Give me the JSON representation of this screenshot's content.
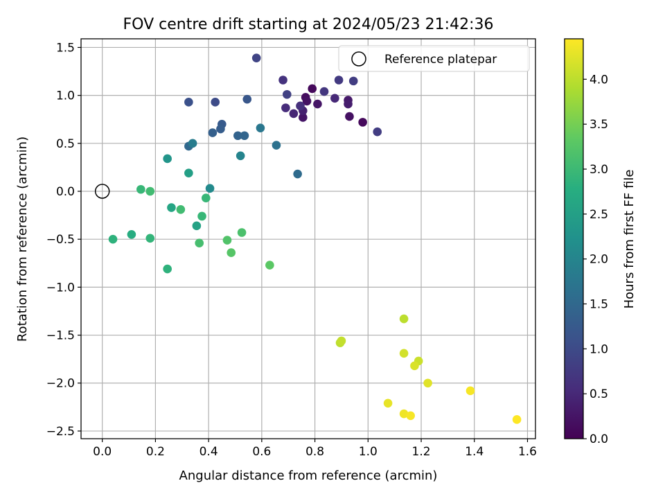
{
  "chart_data": {
    "type": "scatter",
    "title": "FOV centre drift starting at 2024/05/23 21:42:36",
    "xlabel": "Angular distance from reference (arcmin)",
    "ylabel": "Rotation from reference (arcmin)",
    "xlim": [
      -0.08,
      1.63
    ],
    "ylim": [
      -2.58,
      1.59
    ],
    "xticks": [
      0.0,
      0.2,
      0.4,
      0.6,
      0.8,
      1.0,
      1.2,
      1.4,
      1.6
    ],
    "xtick_labels": [
      "0.0",
      "0.2",
      "0.4",
      "0.6",
      "0.8",
      "1.0",
      "1.2",
      "1.4",
      "1.6"
    ],
    "yticks": [
      1.5,
      1.0,
      0.5,
      0.0,
      -0.5,
      -1.0,
      -1.5,
      -2.0,
      -2.5
    ],
    "ytick_labels": [
      "1.5",
      "1.0",
      "0.5",
      "0.0",
      "−0.5",
      "−1.0",
      "−1.5",
      "−2.0",
      "−2.5"
    ],
    "grid": true,
    "legend": {
      "position": "top-right",
      "entries": [
        "Reference platepar"
      ]
    },
    "reference_point": {
      "x": 0.0,
      "y": 0.0,
      "label": "Reference platepar"
    },
    "colorbar": {
      "label": "Hours from first FF file",
      "colormap": "viridis",
      "min": 0.0,
      "max": 4.45,
      "ticks": [
        0.0,
        0.5,
        1.0,
        1.5,
        2.0,
        2.5,
        3.0,
        3.5,
        4.0
      ],
      "tick_labels": [
        "0.0",
        "0.5",
        "1.0",
        "1.5",
        "2.0",
        "2.5",
        "3.0",
        "3.5",
        "4.0"
      ]
    },
    "points": [
      {
        "x": 0.79,
        "y": 1.07,
        "c": 0.1
      },
      {
        "x": 0.765,
        "y": 0.98,
        "c": 0.15
      },
      {
        "x": 0.77,
        "y": 0.94,
        "c": 0.2
      },
      {
        "x": 0.81,
        "y": 0.91,
        "c": 0.25
      },
      {
        "x": 0.98,
        "y": 0.72,
        "c": 0.1
      },
      {
        "x": 0.93,
        "y": 0.78,
        "c": 0.2
      },
      {
        "x": 0.755,
        "y": 0.77,
        "c": 0.25
      },
      {
        "x": 0.925,
        "y": 0.95,
        "c": 0.3
      },
      {
        "x": 0.925,
        "y": 0.91,
        "c": 0.35
      },
      {
        "x": 0.755,
        "y": 0.84,
        "c": 0.4
      },
      {
        "x": 0.72,
        "y": 0.81,
        "c": 0.45
      },
      {
        "x": 0.875,
        "y": 0.97,
        "c": 0.5
      },
      {
        "x": 0.69,
        "y": 0.87,
        "c": 0.55
      },
      {
        "x": 0.745,
        "y": 0.89,
        "c": 0.6
      },
      {
        "x": 0.68,
        "y": 1.16,
        "c": 0.65
      },
      {
        "x": 0.835,
        "y": 1.04,
        "c": 0.7
      },
      {
        "x": 0.89,
        "y": 1.16,
        "c": 0.75
      },
      {
        "x": 0.945,
        "y": 1.15,
        "c": 0.8
      },
      {
        "x": 1.035,
        "y": 0.62,
        "c": 0.8
      },
      {
        "x": 0.695,
        "y": 1.01,
        "c": 0.85
      },
      {
        "x": 0.58,
        "y": 1.39,
        "c": 0.9
      },
      {
        "x": 0.425,
        "y": 0.93,
        "c": 1.0
      },
      {
        "x": 0.325,
        "y": 0.93,
        "c": 1.1
      },
      {
        "x": 0.545,
        "y": 0.96,
        "c": 1.2
      },
      {
        "x": 0.45,
        "y": 0.7,
        "c": 1.25
      },
      {
        "x": 0.445,
        "y": 0.65,
        "c": 1.3
      },
      {
        "x": 0.415,
        "y": 0.61,
        "c": 1.35
      },
      {
        "x": 0.51,
        "y": 0.58,
        "c": 1.4
      },
      {
        "x": 0.535,
        "y": 0.58,
        "c": 1.45
      },
      {
        "x": 0.325,
        "y": 0.47,
        "c": 1.5
      },
      {
        "x": 0.735,
        "y": 0.18,
        "c": 1.55
      },
      {
        "x": 0.655,
        "y": 0.48,
        "c": 1.65
      },
      {
        "x": 0.595,
        "y": 0.66,
        "c": 1.75
      },
      {
        "x": 0.34,
        "y": 0.5,
        "c": 1.85
      },
      {
        "x": 0.52,
        "y": 0.37,
        "c": 2.0
      },
      {
        "x": 0.405,
        "y": 0.03,
        "c": 2.1
      },
      {
        "x": 0.245,
        "y": 0.34,
        "c": 2.3
      },
      {
        "x": 0.325,
        "y": 0.19,
        "c": 2.5
      },
      {
        "x": 0.355,
        "y": -0.36,
        "c": 2.55
      },
      {
        "x": 0.26,
        "y": -0.17,
        "c": 2.6
      },
      {
        "x": 0.11,
        "y": -0.45,
        "c": 2.75
      },
      {
        "x": 0.245,
        "y": -0.81,
        "c": 2.85
      },
      {
        "x": 0.04,
        "y": -0.5,
        "c": 2.85
      },
      {
        "x": 0.18,
        "y": -0.49,
        "c": 2.9
      },
      {
        "x": 0.39,
        "y": -0.07,
        "c": 2.95
      },
      {
        "x": 0.375,
        "y": -0.26,
        "c": 2.95
      },
      {
        "x": 0.145,
        "y": 0.02,
        "c": 2.95
      },
      {
        "x": 0.18,
        "y": 0.0,
        "c": 3.05
      },
      {
        "x": 0.295,
        "y": -0.19,
        "c": 3.05
      },
      {
        "x": 0.365,
        "y": -0.54,
        "c": 3.1
      },
      {
        "x": 0.525,
        "y": -0.43,
        "c": 3.15
      },
      {
        "x": 0.47,
        "y": -0.51,
        "c": 3.2
      },
      {
        "x": 0.485,
        "y": -0.64,
        "c": 3.25
      },
      {
        "x": 0.63,
        "y": -0.77,
        "c": 3.3
      },
      {
        "x": 1.135,
        "y": -1.33,
        "c": 4.0
      },
      {
        "x": 0.895,
        "y": -1.58,
        "c": 4.0
      },
      {
        "x": 0.9,
        "y": -1.56,
        "c": 4.05
      },
      {
        "x": 1.19,
        "y": -1.77,
        "c": 4.1
      },
      {
        "x": 1.135,
        "y": -1.69,
        "c": 4.15
      },
      {
        "x": 1.175,
        "y": -1.82,
        "c": 4.2
      },
      {
        "x": 1.225,
        "y": -2.0,
        "c": 4.25
      },
      {
        "x": 1.075,
        "y": -2.21,
        "c": 4.3
      },
      {
        "x": 1.135,
        "y": -2.32,
        "c": 4.35
      },
      {
        "x": 1.16,
        "y": -2.34,
        "c": 4.4
      },
      {
        "x": 1.385,
        "y": -2.08,
        "c": 4.4
      },
      {
        "x": 1.56,
        "y": -2.38,
        "c": 4.45
      }
    ]
  }
}
